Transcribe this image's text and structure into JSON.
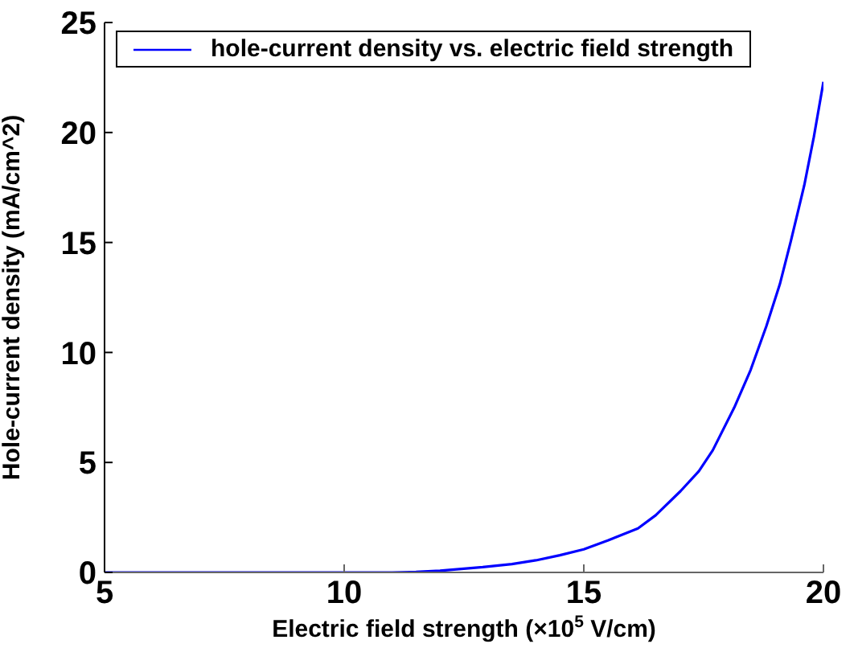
{
  "chart_data": {
    "type": "line",
    "xlabel": "Electric field strength (×10$^{5}$ V/cm)",
    "ylabel": "Hole-current density (mA/cm^2)",
    "x": [
      5,
      7,
      9,
      10,
      11,
      11.5,
      12,
      12.89,
      13.5,
      14,
      14.5,
      15,
      15.5,
      16.13,
      16.5,
      17.02,
      17.4,
      17.69,
      18.14,
      18.48,
      18.81,
      19.09,
      19.32,
      19.6,
      19.8,
      20
    ],
    "series": [
      {
        "name": "hole-current density vs. electric field strength",
        "color": "#0000ff",
        "values": [
          0,
          0,
          0,
          0,
          0,
          0.02,
          0.08,
          0.24,
          0.38,
          0.55,
          0.78,
          1.05,
          1.45,
          2.0,
          2.6,
          3.7,
          4.6,
          5.55,
          7.5,
          9.2,
          11.2,
          13.1,
          15.06,
          17.6,
          19.8,
          22.3
        ]
      }
    ],
    "xlim": [
      5,
      20
    ],
    "xticks": [
      5,
      10,
      15,
      20
    ],
    "ylim": [
      0,
      25
    ],
    "yticks": [
      0,
      5,
      10,
      15,
      20,
      25
    ],
    "grid": false,
    "legend": "top left",
    "marker": "none",
    "line_style": "solid"
  }
}
